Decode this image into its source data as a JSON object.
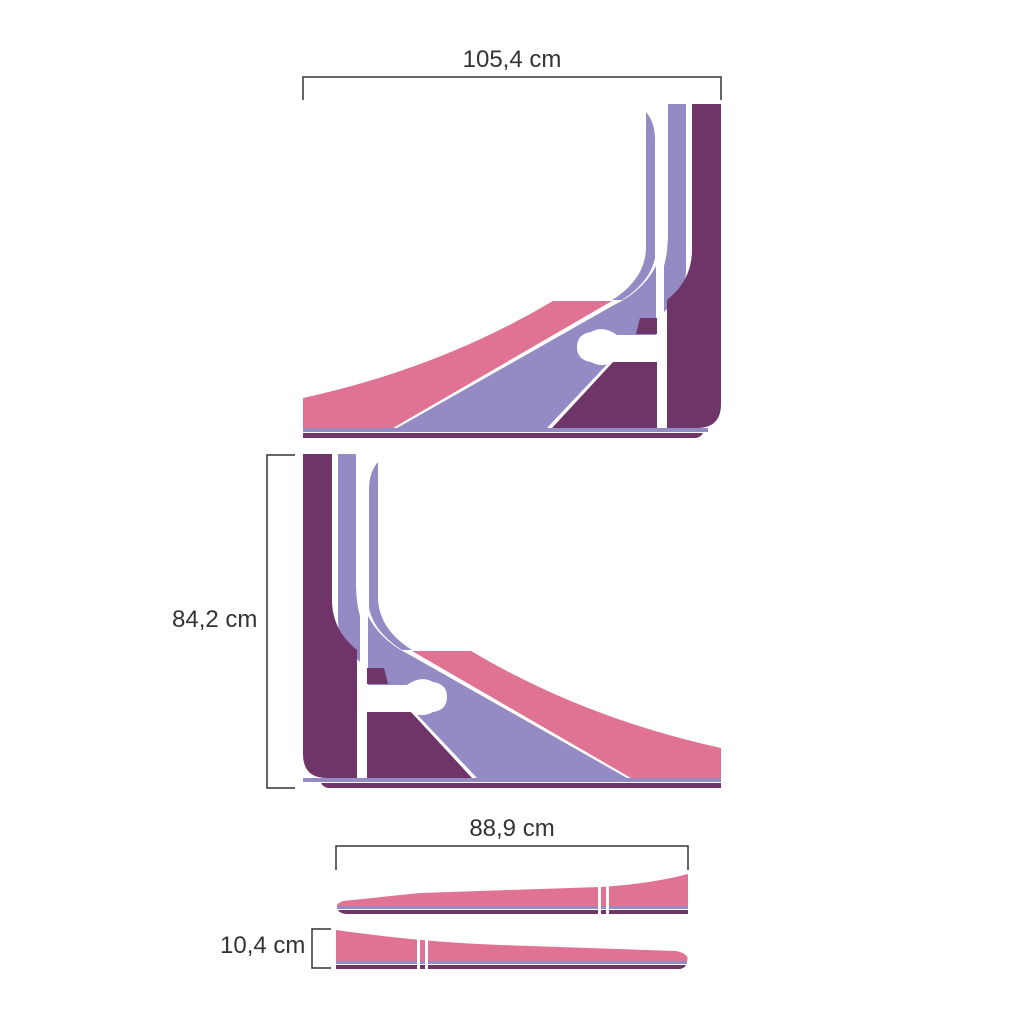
{
  "colors": {
    "dark_purple": "#6f3569",
    "lavender": "#958bc4",
    "pink": "#e07394",
    "line": "#333333",
    "background": "#ffffff"
  },
  "dimensions": {
    "top_width": "105,4 cm",
    "height": "84,2 cm",
    "length": "88,9 cm",
    "thickness": "10,4 cm"
  }
}
